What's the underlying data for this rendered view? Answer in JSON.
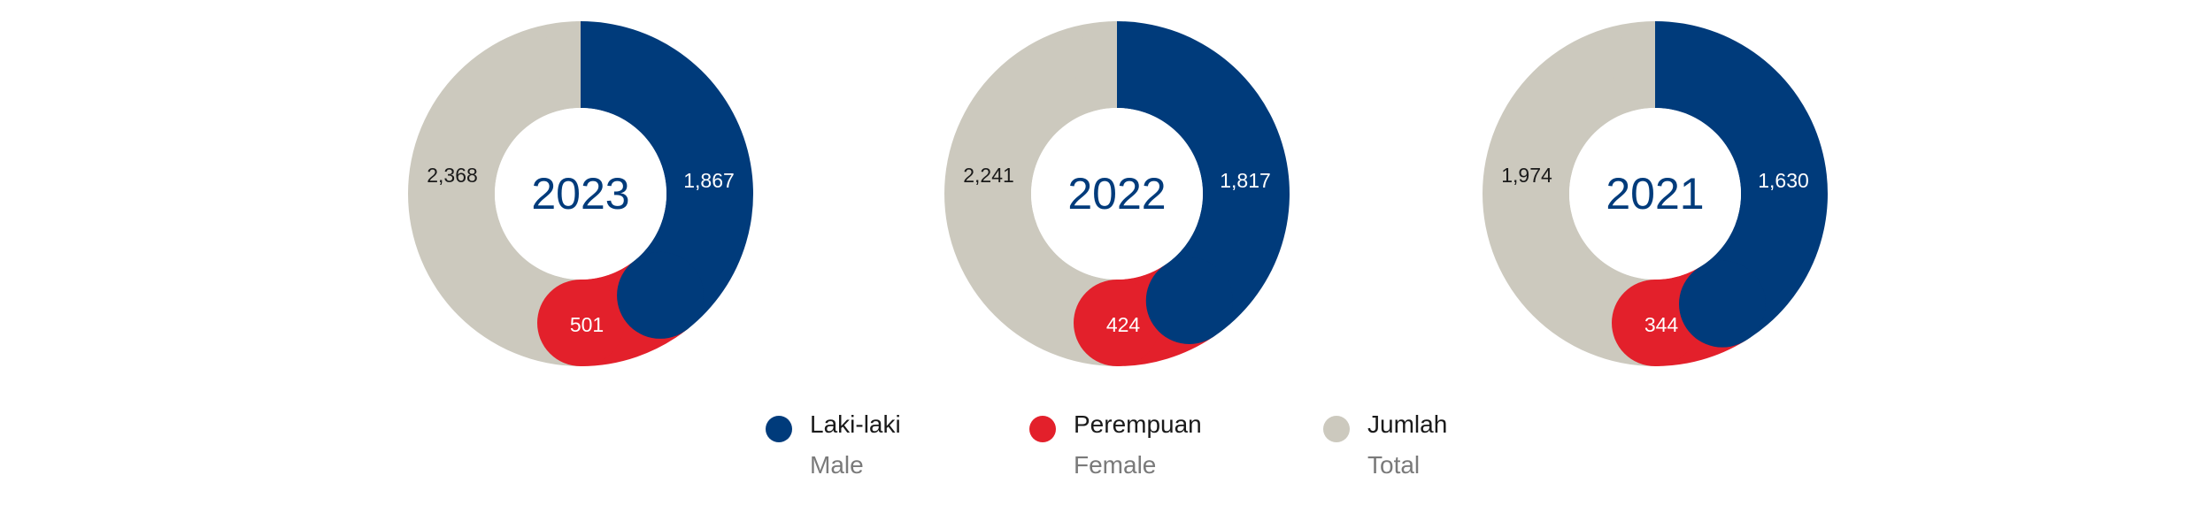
{
  "colors": {
    "male": "#003b7b",
    "female": "#e3202b",
    "total": "#ccc9be"
  },
  "chart_data": [
    {
      "type": "pie",
      "year_label": "2023",
      "series": [
        {
          "name": "Laki-laki",
          "value": 1867,
          "label": "1,867"
        },
        {
          "name": "Perempuan",
          "value": 501,
          "label": "501"
        },
        {
          "name": "Jumlah",
          "value": 2368,
          "label": "2,368"
        }
      ]
    },
    {
      "type": "pie",
      "year_label": "2022",
      "series": [
        {
          "name": "Laki-laki",
          "value": 1817,
          "label": "1,817"
        },
        {
          "name": "Perempuan",
          "value": 424,
          "label": "424"
        },
        {
          "name": "Jumlah",
          "value": 2241,
          "label": "2,241"
        }
      ]
    },
    {
      "type": "pie",
      "year_label": "2021",
      "series": [
        {
          "name": "Laki-laki",
          "value": 1630,
          "label": "1,630"
        },
        {
          "name": "Perempuan",
          "value": 344,
          "label": "344"
        },
        {
          "name": "Jumlah",
          "value": 1974,
          "label": "1,974"
        }
      ]
    }
  ],
  "legend": [
    {
      "label": "Laki-laki",
      "sublabel": "Male",
      "color": "#003b7b"
    },
    {
      "label": "Perempuan",
      "sublabel": "Female",
      "color": "#e3202b"
    },
    {
      "label": "Jumlah",
      "sublabel": "Total",
      "color": "#ccc9be"
    }
  ]
}
